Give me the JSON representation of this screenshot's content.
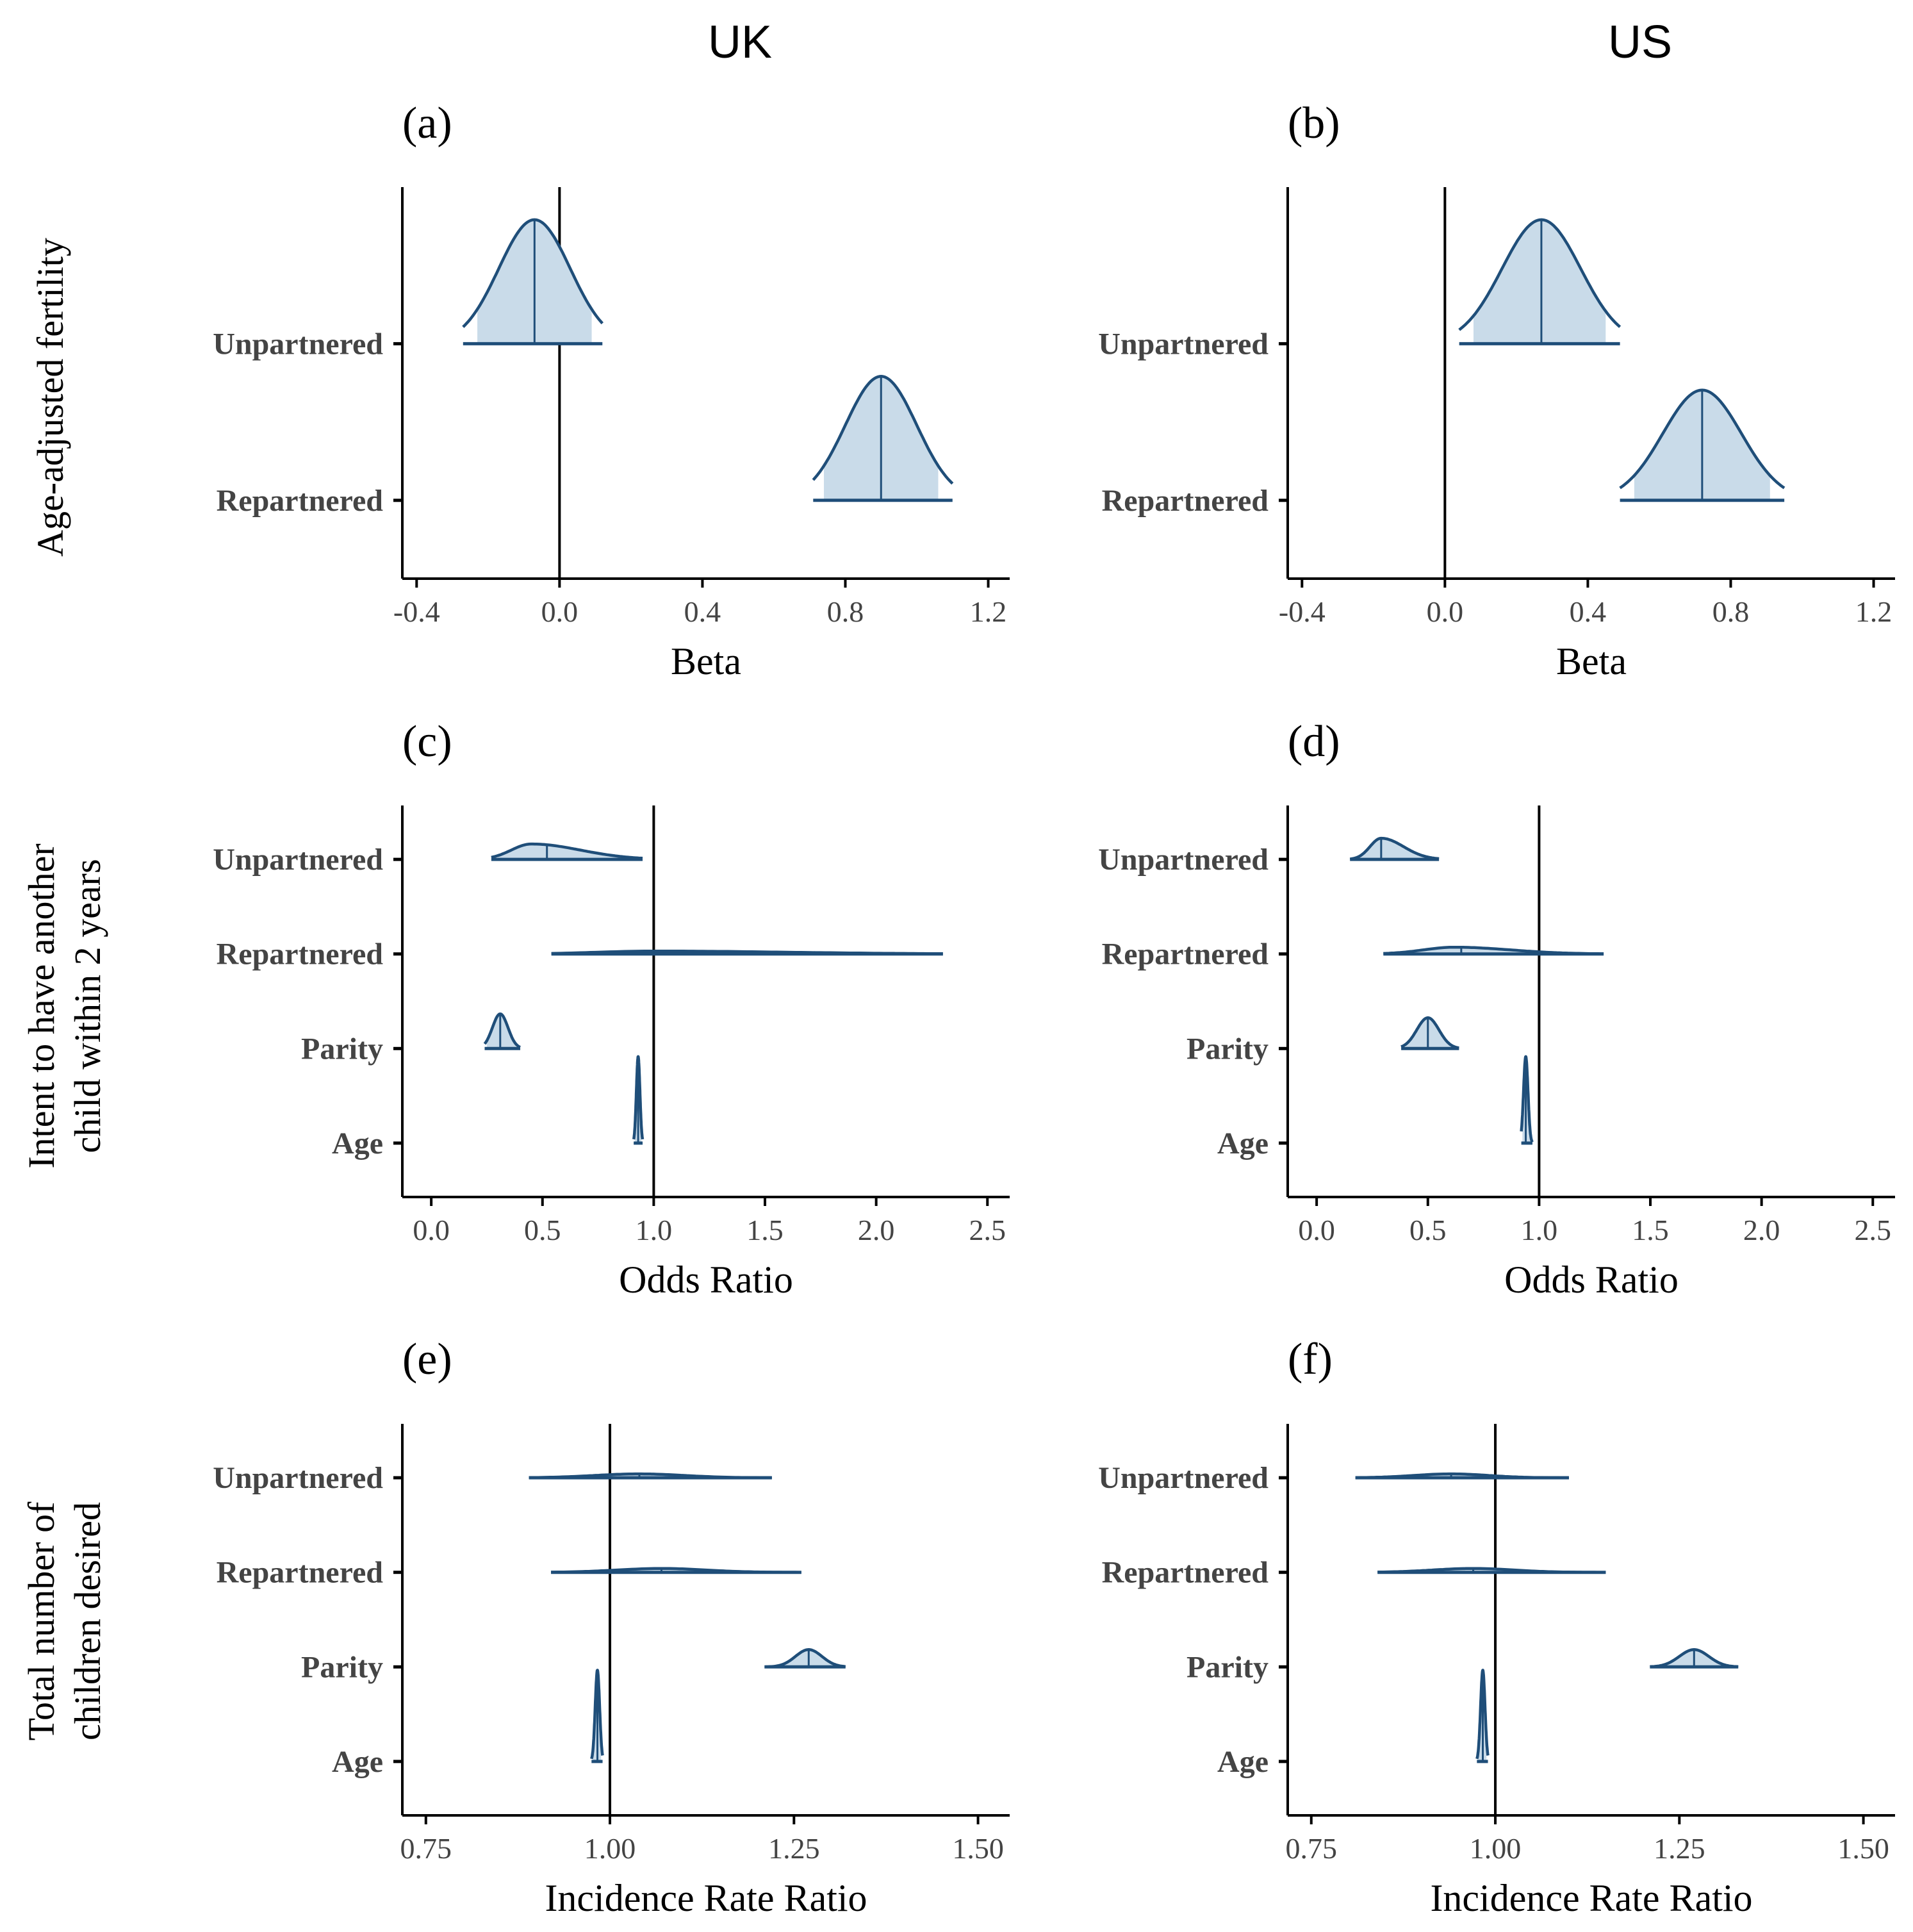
{
  "figure": {
    "columns": [
      "UK",
      "US"
    ],
    "rows": [
      {
        "title_lines": [
          "Age-adjusted fertility"
        ]
      },
      {
        "title_lines": [
          "Intent to have another",
          "child within 2 years"
        ]
      },
      {
        "title_lines": [
          "Total number of",
          "children desired"
        ]
      }
    ]
  },
  "colors": {
    "outline": "#1f4e79",
    "fill": "#c9dbe9",
    "axis": "#000000",
    "tick_text": "#444444"
  },
  "chart_data": [
    {
      "type": "ridge",
      "label": "(a)",
      "column": "UK",
      "row": 0,
      "xlabel": "Beta",
      "ylabel": "Age-adjusted fertility",
      "xlim": [
        -0.44,
        1.26
      ],
      "ticks": [
        -0.4,
        0.0,
        0.4,
        0.8,
        1.2
      ],
      "tick_labels": [
        "-0.4",
        "0.0",
        "0.4",
        "0.8",
        "1.2"
      ],
      "refline": 0.0,
      "categories": [
        "Unpartnered",
        "Repartnered"
      ],
      "ylim": [
        0.5,
        3.0
      ],
      "series": [
        {
          "name": "Unpartnered",
          "min": -0.27,
          "max": 0.12,
          "ci_low": -0.23,
          "ci_high": 0.09,
          "point": -0.07,
          "mode": -0.07,
          "sd": 0.1,
          "peak": 0.9
        },
        {
          "name": "Repartnered",
          "min": 0.71,
          "max": 1.1,
          "ci_low": 0.74,
          "ci_high": 1.06,
          "point": 0.9,
          "mode": 0.9,
          "sd": 0.1,
          "peak": 0.9
        }
      ]
    },
    {
      "type": "ridge",
      "label": "(b)",
      "column": "US",
      "row": 0,
      "xlabel": "Beta",
      "ylabel": "Age-adjusted fertility",
      "xlim": [
        -0.44,
        1.26
      ],
      "ticks": [
        -0.4,
        0.0,
        0.4,
        0.8,
        1.2
      ],
      "tick_labels": [
        "-0.4",
        "0.0",
        "0.4",
        "0.8",
        "1.2"
      ],
      "refline": 0.0,
      "categories": [
        "Unpartnered",
        "Repartnered"
      ],
      "ylim": [
        0.5,
        3.0
      ],
      "series": [
        {
          "name": "Unpartnered",
          "min": 0.04,
          "max": 0.49,
          "ci_low": 0.08,
          "ci_high": 0.45,
          "point": 0.27,
          "mode": 0.27,
          "sd": 0.11,
          "peak": 0.9
        },
        {
          "name": "Repartnered",
          "min": 0.49,
          "max": 0.95,
          "ci_low": 0.53,
          "ci_high": 0.91,
          "point": 0.72,
          "mode": 0.72,
          "sd": 0.11,
          "peak": 0.8
        }
      ]
    },
    {
      "type": "ridge",
      "label": "(c)",
      "column": "UK",
      "row": 1,
      "xlabel": "Odds Ratio",
      "ylabel": "Intent to have another child within 2 years",
      "xlim": [
        -0.13,
        2.6
      ],
      "ticks": [
        0.0,
        0.5,
        1.0,
        1.5,
        2.0,
        2.5
      ],
      "tick_labels": [
        "0.0",
        "0.5",
        "1.0",
        "1.5",
        "2.0",
        "2.5"
      ],
      "refline": 1.0,
      "categories": [
        "Unpartnered",
        "Repartnered",
        "Parity",
        "Age"
      ],
      "ylim": [
        0.43,
        4.57
      ],
      "series": [
        {
          "name": "Unpartnered",
          "min": 0.27,
          "max": 0.95,
          "ci_low": 0.3,
          "ci_high": 0.9,
          "point": 0.52,
          "mode": 0.45,
          "sd_left": 0.09,
          "sd_right": 0.22,
          "peak": 0.16
        },
        {
          "name": "Repartnered",
          "min": 0.54,
          "max": 2.3,
          "ci_low": 0.6,
          "ci_high": 2.1,
          "point": 1.05,
          "mode": 1.0,
          "sd_left": 0.25,
          "sd_right": 0.6,
          "peak": 0.03
        },
        {
          "name": "Parity",
          "min": 0.24,
          "max": 0.4,
          "ci_low": 0.25,
          "ci_high": 0.38,
          "point": 0.31,
          "mode": 0.31,
          "sd": 0.035,
          "peak": 0.36
        },
        {
          "name": "Age",
          "min": 0.91,
          "max": 0.95,
          "ci_low": 0.915,
          "ci_high": 0.945,
          "point": 0.93,
          "mode": 0.93,
          "sd": 0.008,
          "peak": 0.9
        }
      ]
    },
    {
      "type": "ridge",
      "label": "(d)",
      "column": "US",
      "row": 1,
      "xlabel": "Odds Ratio",
      "ylabel": "Intent to have another child within 2 years",
      "xlim": [
        -0.13,
        2.6
      ],
      "ticks": [
        0.0,
        0.5,
        1.0,
        1.5,
        2.0,
        2.5
      ],
      "tick_labels": [
        "0.0",
        "0.5",
        "1.0",
        "1.5",
        "2.0",
        "2.5"
      ],
      "refline": 1.0,
      "categories": [
        "Unpartnered",
        "Repartnered",
        "Parity",
        "Age"
      ],
      "ylim": [
        0.43,
        4.57
      ],
      "series": [
        {
          "name": "Unpartnered",
          "min": 0.15,
          "max": 0.55,
          "ci_low": 0.17,
          "ci_high": 0.5,
          "point": 0.29,
          "mode": 0.29,
          "sd_left": 0.05,
          "sd_right": 0.1,
          "peak": 0.22
        },
        {
          "name": "Repartnered",
          "min": 0.3,
          "max": 1.29,
          "ci_low": 0.33,
          "ci_high": 1.2,
          "point": 0.65,
          "mode": 0.62,
          "sd_left": 0.14,
          "sd_right": 0.25,
          "peak": 0.07
        },
        {
          "name": "Parity",
          "min": 0.38,
          "max": 0.64,
          "ci_low": 0.4,
          "ci_high": 0.62,
          "point": 0.5,
          "mode": 0.5,
          "sd": 0.05,
          "peak": 0.32
        },
        {
          "name": "Age",
          "min": 0.92,
          "max": 0.97,
          "ci_low": 0.925,
          "ci_high": 0.965,
          "point": 0.94,
          "mode": 0.94,
          "sd": 0.01,
          "peak": 0.9
        }
      ]
    },
    {
      "type": "ridge",
      "label": "(e)",
      "column": "UK",
      "row": 2,
      "xlabel": "Incidence Rate Ratio",
      "ylabel": "Total number of children desired",
      "xlim": [
        0.718,
        1.543
      ],
      "ticks": [
        0.75,
        1.0,
        1.25,
        1.5
      ],
      "tick_labels": [
        "0.75",
        "1.00",
        "1.25",
        "1.50"
      ],
      "refline": 1.0,
      "categories": [
        "Unpartnered",
        "Repartnered",
        "Parity",
        "Age"
      ],
      "ylim": [
        0.43,
        4.57
      ],
      "series": [
        {
          "name": "Unpartnered",
          "min": 0.89,
          "max": 1.22,
          "ci_low": 0.91,
          "ci_high": 1.2,
          "point": 1.04,
          "mode": 1.04,
          "sd": 0.06,
          "peak": 0.04
        },
        {
          "name": "Repartnered",
          "min": 0.92,
          "max": 1.26,
          "ci_low": 0.94,
          "ci_high": 1.23,
          "point": 1.07,
          "mode": 1.07,
          "sd": 0.06,
          "peak": 0.04
        },
        {
          "name": "Parity",
          "min": 1.21,
          "max": 1.32,
          "ci_low": 1.22,
          "ci_high": 1.31,
          "point": 1.27,
          "mode": 1.27,
          "sd": 0.018,
          "peak": 0.18
        },
        {
          "name": "Age",
          "min": 0.975,
          "max": 0.99,
          "ci_low": 0.977,
          "ci_high": 0.988,
          "point": 0.983,
          "mode": 0.983,
          "sd": 0.003,
          "peak": 0.95
        }
      ]
    },
    {
      "type": "ridge",
      "label": "(f)",
      "column": "US",
      "row": 2,
      "xlabel": "Incidence Rate Ratio",
      "ylabel": "Total number of children desired",
      "xlim": [
        0.718,
        1.543
      ],
      "ticks": [
        0.75,
        1.0,
        1.25,
        1.5
      ],
      "tick_labels": [
        "0.75",
        "1.00",
        "1.25",
        "1.50"
      ],
      "refline": 1.0,
      "categories": [
        "Unpartnered",
        "Repartnered",
        "Parity",
        "Age"
      ],
      "ylim": [
        0.43,
        4.57
      ],
      "series": [
        {
          "name": "Unpartnered",
          "min": 0.81,
          "max": 1.1,
          "ci_low": 0.83,
          "ci_high": 1.08,
          "point": 0.94,
          "mode": 0.94,
          "sd": 0.05,
          "peak": 0.04
        },
        {
          "name": "Repartnered",
          "min": 0.84,
          "max": 1.15,
          "ci_low": 0.86,
          "ci_high": 1.13,
          "point": 0.97,
          "mode": 0.97,
          "sd": 0.055,
          "peak": 0.04
        },
        {
          "name": "Parity",
          "min": 1.21,
          "max": 1.33,
          "ci_low": 1.22,
          "ci_high": 1.32,
          "point": 1.27,
          "mode": 1.27,
          "sd": 0.02,
          "peak": 0.18
        },
        {
          "name": "Age",
          "min": 0.975,
          "max": 0.99,
          "ci_low": 0.977,
          "ci_high": 0.988,
          "point": 0.983,
          "mode": 0.983,
          "sd": 0.003,
          "peak": 0.95
        }
      ]
    }
  ]
}
